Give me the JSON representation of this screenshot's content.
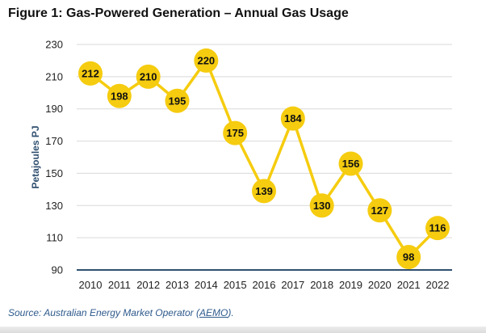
{
  "title": "Figure 1: Gas-Powered Generation – Annual Gas Usage",
  "source": {
    "prefix": "Source: Australian Energy Market Operator (",
    "link": "AEMO",
    "suffix": ")."
  },
  "colors": {
    "line": "#f5cc0f",
    "marker": "#f5cc0f",
    "grid": "#d9d9d9",
    "axis": "#2f4f6f",
    "source_text": "#2e5a8c"
  },
  "chart_data": {
    "type": "line",
    "title": "Figure 1: Gas-Powered Generation – Annual Gas Usage",
    "xlabel": "",
    "ylabel": "Petajoules PJ",
    "categories": [
      "2010",
      "2011",
      "2012",
      "2013",
      "2014",
      "2015",
      "2016",
      "2017",
      "2018",
      "2019",
      "2020",
      "2021",
      "2022"
    ],
    "series": [
      {
        "values": [
          212,
          198,
          210,
          195,
          220,
          175,
          139,
          184,
          130,
          156,
          127,
          98,
          116
        ]
      }
    ],
    "y_ticks": [
      90,
      110,
      130,
      150,
      170,
      190,
      210,
      230
    ],
    "ylim": [
      90,
      230
    ],
    "grid": true,
    "legend": "none",
    "data_labels": true
  }
}
